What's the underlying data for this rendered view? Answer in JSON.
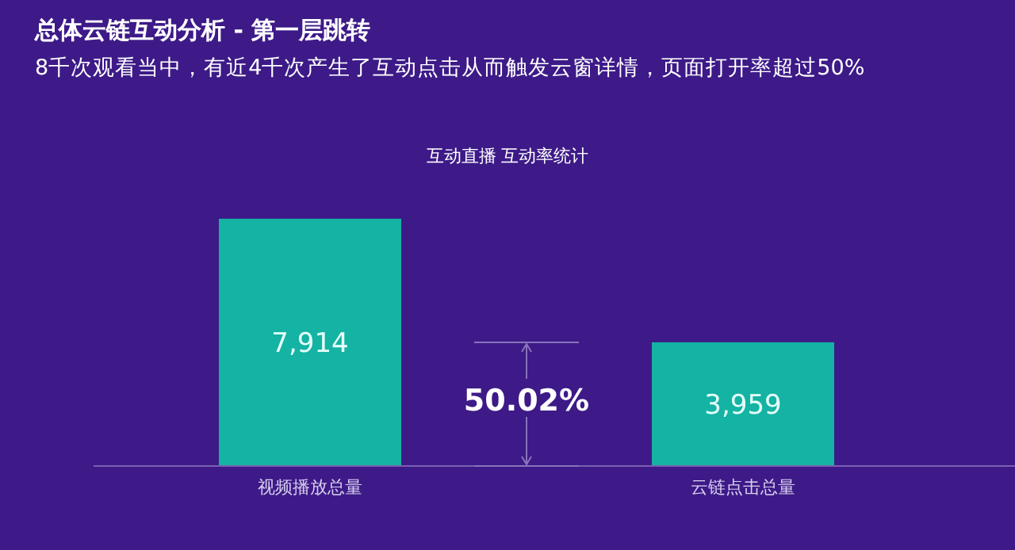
{
  "chart_data": {
    "type": "bar",
    "title": "总体云链互动分析 - 第一层跳转",
    "subtitle": "8千次观看当中，有近4千次产生了互动点击从而触发云窗详情，页面打开率超过50%",
    "annotations": [
      "互动直播 互动率统计",
      "50.02%"
    ],
    "categories": [
      "视频播放总量",
      "云链点击总量"
    ],
    "values": [
      7914,
      3959
    ],
    "value_labels": [
      "7,914",
      "3,959"
    ],
    "color": "#14b3a3"
  }
}
